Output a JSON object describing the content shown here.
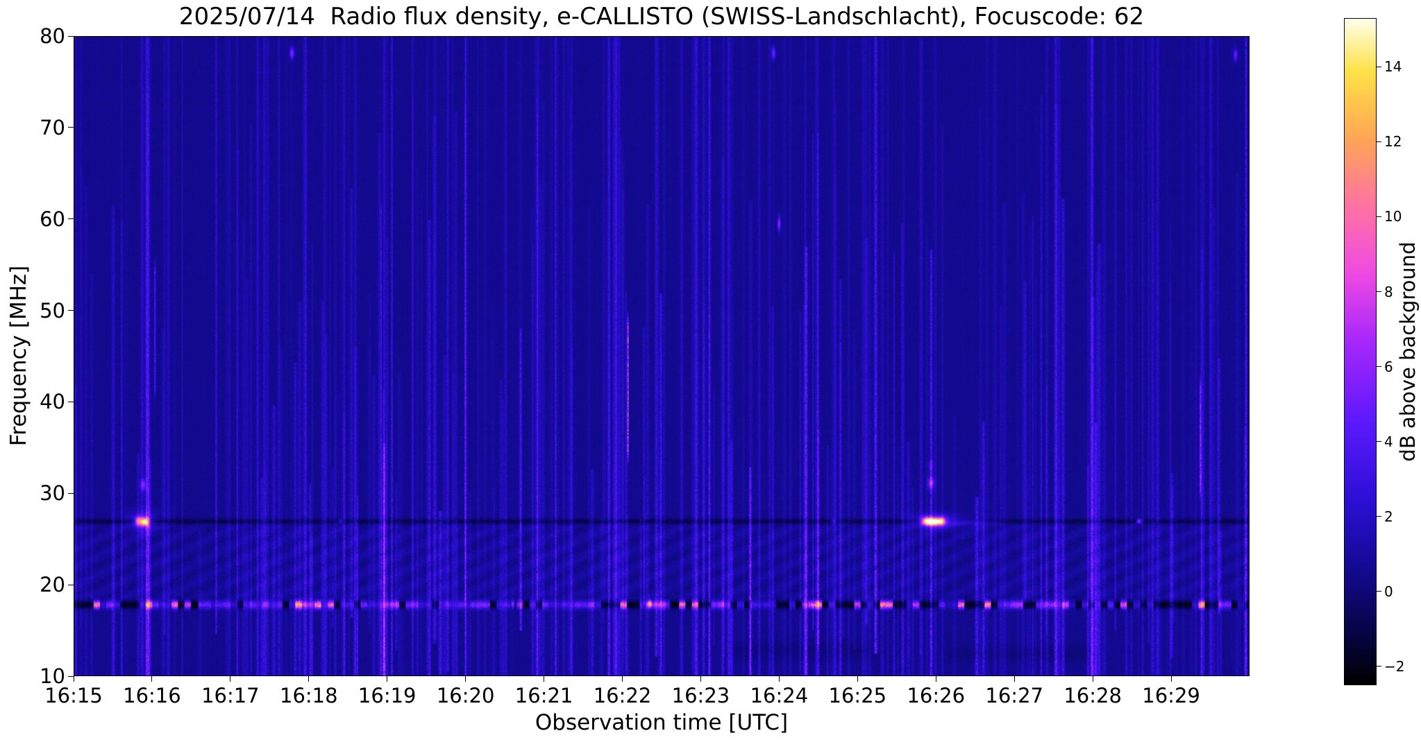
{
  "chart_data": {
    "type": "heatmap",
    "subtype": "radio-spectrogram",
    "title": "2025/07/14  Radio flux density, e-CALLISTO (SWISS-Landschlacht), Focuscode: 62",
    "xlabel": "Observation time [UTC]",
    "ylabel": "Frequency [MHz]",
    "x_start_utc": "16:15",
    "x_end_utc": "16:30",
    "x_span_minutes": 15,
    "x_tick_labels": [
      "16:15",
      "16:16",
      "16:17",
      "16:18",
      "16:19",
      "16:20",
      "16:21",
      "16:22",
      "16:23",
      "16:24",
      "16:25",
      "16:26",
      "16:27",
      "16:28",
      "16:29"
    ],
    "ylim": [
      10,
      80
    ],
    "y_ticks": [
      10,
      20,
      30,
      40,
      50,
      60,
      70,
      80
    ],
    "grid": false,
    "background_db": 0.55,
    "colorbar": {
      "label": "dB above background",
      "tick_values": [
        -2,
        0,
        2,
        4,
        6,
        8,
        10,
        12,
        14
      ],
      "tick_labels": [
        "−2",
        "0",
        "2",
        "4",
        "6",
        "8",
        "10",
        "12",
        "14"
      ],
      "vmin": -2.5,
      "vmax": 15.3,
      "colormap": "gnuplot2-like (black-blue-violet-magenta-orange-yellow-white)",
      "stops": [
        [
          0.0,
          [
            0,
            0,
            0
          ]
        ],
        [
          0.08,
          [
            6,
            4,
            70
          ]
        ],
        [
          0.18,
          [
            20,
            10,
            150
          ]
        ],
        [
          0.28,
          [
            45,
            15,
            215
          ]
        ],
        [
          0.4,
          [
            95,
            25,
            255
          ]
        ],
        [
          0.52,
          [
            170,
            40,
            250
          ]
        ],
        [
          0.62,
          [
            240,
            75,
            225
          ]
        ],
        [
          0.72,
          [
            255,
            115,
            160
          ]
        ],
        [
          0.82,
          [
            255,
            165,
            85
          ]
        ],
        [
          0.92,
          [
            255,
            225,
            70
          ]
        ],
        [
          1.0,
          [
            255,
            255,
            235
          ]
        ]
      ]
    },
    "features": {
      "calibration_band": {
        "description": "strong variable RFI band near 17.8 MHz with black dropouts and pink enhancements across the whole time span",
        "freq_mhz": 17.75,
        "sigma_f_mhz": 0.3,
        "seg_minutes": 0.083,
        "dark_fraction_early": 0.25,
        "dark_fraction_late": 0.45,
        "bright_peak_db": 9
      },
      "dark_line": {
        "description": "narrow absorption-like dark line across all times",
        "freq_mhz": 26.9,
        "sigma_f_mhz": 0.2,
        "depth_db": -2.1
      },
      "hatch_band": {
        "description": "diagonally hatched interference texture between 18 and 27 MHz",
        "f_low_mhz": 18.25,
        "f_high_mhz": 26.7,
        "amp_db": 0.5,
        "stripes_per_min": 2.1,
        "stripe_slope": 0.5
      },
      "bursts": [
        {
          "label": "27 MHz burst at 16:15:49",
          "t_min": 0.82,
          "freq_mhz": 26.9,
          "peak_db": 8.5,
          "sigma_t_min": 0.03,
          "sigma_f_mhz": 0.32
        },
        {
          "label": "27 MHz burst core at 16:15:54",
          "t_min": 0.9,
          "freq_mhz": 26.85,
          "peak_db": 13.0,
          "sigma_t_min": 0.035,
          "sigma_f_mhz": 0.3
        },
        {
          "label": "27 MHz burst halo at 16:15:52",
          "t_min": 0.86,
          "freq_mhz": 26.9,
          "peak_db": 3.0,
          "sigma_t_min": 0.12,
          "sigma_f_mhz": 0.75
        },
        {
          "label": "27 MHz burst at 16:25:53",
          "t_min": 10.88,
          "freq_mhz": 26.9,
          "peak_db": 11.5,
          "sigma_t_min": 0.04,
          "sigma_f_mhz": 0.3
        },
        {
          "label": "27 MHz burst core at 16:25:58",
          "t_min": 10.97,
          "freq_mhz": 26.85,
          "peak_db": 14.5,
          "sigma_t_min": 0.05,
          "sigma_f_mhz": 0.28
        },
        {
          "label": "27 MHz burst at 16:26:04",
          "t_min": 11.07,
          "freq_mhz": 26.9,
          "peak_db": 10.5,
          "sigma_t_min": 0.04,
          "sigma_f_mhz": 0.3
        },
        {
          "label": "27 MHz burst halo at 16:26",
          "t_min": 11.0,
          "freq_mhz": 26.9,
          "peak_db": 3.5,
          "sigma_t_min": 0.2,
          "sigma_f_mhz": 0.55
        },
        {
          "label": "blue tail toward 16:27",
          "t_min": 11.4,
          "freq_mhz": 26.8,
          "peak_db": 2.2,
          "sigma_t_min": 0.28,
          "sigma_f_mhz": 0.22
        }
      ],
      "spot_dots": [
        {
          "label": "31 MHz companion of first burst",
          "t_min": 0.88,
          "freq_mhz": 30.9,
          "peak_db": 4.5,
          "sigma_t_min": 0.025,
          "sigma_f_mhz": 0.4
        },
        {
          "label": "31 MHz companion of second burst",
          "t_min": 10.94,
          "freq_mhz": 31.1,
          "peak_db": 5.0,
          "sigma_t_min": 0.03,
          "sigma_f_mhz": 0.45
        },
        {
          "label": "33 MHz faint companion",
          "t_min": 10.94,
          "freq_mhz": 33.0,
          "peak_db": 2.4,
          "sigma_t_min": 0.02,
          "sigma_f_mhz": 0.35
        },
        {
          "label": "78 MHz dot at 16:17:47",
          "t_min": 2.78,
          "freq_mhz": 78.2,
          "peak_db": 5.0,
          "sigma_t_min": 0.02,
          "sigma_f_mhz": 0.45
        },
        {
          "label": "78 MHz dot at 16:23:56",
          "t_min": 8.93,
          "freq_mhz": 78.2,
          "peak_db": 4.5,
          "sigma_t_min": 0.018,
          "sigma_f_mhz": 0.45
        },
        {
          "label": "78 MHz dot at 16:29:50",
          "t_min": 14.83,
          "freq_mhz": 78.0,
          "peak_db": 4.5,
          "sigma_t_min": 0.018,
          "sigma_f_mhz": 0.45
        },
        {
          "label": "59 MHz reddish speck near 16:24",
          "t_min": 9.0,
          "freq_mhz": 59.5,
          "peak_db": 6.0,
          "sigma_t_min": 0.012,
          "sigma_f_mhz": 0.55
        },
        {
          "label": "orange dash on 27 MHz line near 16:28:36",
          "t_min": 13.6,
          "freq_mhz": 26.9,
          "peak_db": 6.5,
          "sigma_t_min": 0.025,
          "sigma_f_mhz": 0.18
        },
        {
          "label": "pink dash on 27 MHz line near 16:18:24",
          "t_min": 3.4,
          "freq_mhz": 26.9,
          "peak_db": 3.2,
          "sigma_t_min": 0.02,
          "sigma_f_mhz": 0.18
        },
        {
          "label": "pink dash on 27 MHz line near 16:24:42",
          "t_min": 9.7,
          "freq_mhz": 26.9,
          "peak_db": 3.0,
          "sigma_t_min": 0.02,
          "sigma_f_mhz": 0.18
        },
        {
          "label": "bright spot in 17.8 MHz band near 16:20:36",
          "t_min": 5.6,
          "freq_mhz": 17.8,
          "peak_db": 7.5,
          "sigma_t_min": 0.02,
          "sigma_f_mhz": 0.3
        },
        {
          "label": "bright spot in 17.8 MHz band near 16:22:21",
          "t_min": 7.35,
          "freq_mhz": 17.9,
          "peak_db": 8.5,
          "sigma_t_min": 0.015,
          "sigma_f_mhz": 0.25
        }
      ],
      "rfi_lines_colored": [
        {
          "label": "orange vertical line near 16:22:04",
          "t_min": 7.07,
          "f_low_mhz": 33,
          "f_high_mhz": 50,
          "peak_db": 8.0,
          "sigma_t_min": 0.006
        },
        {
          "label": "pink vertical line near 16:29:23",
          "t_min": 14.38,
          "f_low_mhz": 29,
          "f_high_mhz": 43,
          "peak_db": 5.5,
          "sigma_t_min": 0.006
        },
        {
          "label": "faint violet line near 16:16:02",
          "t_min": 1.03,
          "f_low_mhz": 40,
          "f_high_mhz": 56,
          "peak_db": 3.2,
          "sigma_t_min": 0.008
        }
      ],
      "vertical_rfi": {
        "description": "many faint thin vertical blue interference streaks",
        "count": 300,
        "amp_db_range": [
          0.5,
          4.5
        ],
        "sigma_t_min_range": [
          0.005,
          0.017
        ]
      },
      "dark_patches": [
        {
          "t_min_start": 8.2,
          "t_min_end": 10.4,
          "freq_mhz": 12.8,
          "depth_db": -0.5,
          "sigma_f_mhz": 0.8
        },
        {
          "t_min_start": 11.0,
          "t_min_end": 13.2,
          "freq_mhz": 12.4,
          "depth_db": -0.45,
          "sigma_f_mhz": 0.7
        }
      ]
    }
  }
}
